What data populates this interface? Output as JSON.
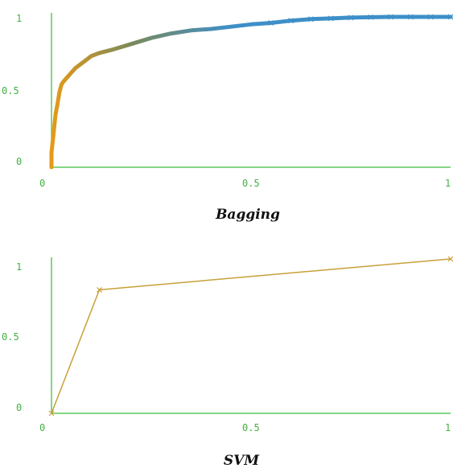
{
  "chart_data": [
    {
      "type": "line",
      "title": "Bagging",
      "xlabel": "",
      "ylabel": "",
      "xlim": [
        0,
        1
      ],
      "ylim": [
        0,
        1
      ],
      "x_ticks": [
        "0",
        "0.5",
        "1"
      ],
      "y_ticks": [
        "0",
        "0.5",
        "1"
      ],
      "grid": false,
      "colors": {
        "axis": "#5cc85c",
        "tick_text": "#44b044",
        "gradient_start": "#e69a18",
        "gradient_mid": "#7a8a5c",
        "gradient_end": "#3e8fc8",
        "marker": "#3e8fc8"
      },
      "series": [
        {
          "x": [
            0.0,
            0.0,
            0.005,
            0.008,
            0.01,
            0.015,
            0.02,
            0.025,
            0.03,
            0.04,
            0.05,
            0.06,
            0.08,
            0.1,
            0.12,
            0.15,
            0.2,
            0.25,
            0.3,
            0.35,
            0.4,
            0.45,
            0.5,
            0.55,
            0.6,
            0.65,
            0.7,
            0.75,
            0.8,
            0.85,
            0.9,
            0.95,
            1.0
          ],
          "y": [
            0.0,
            0.1,
            0.22,
            0.3,
            0.35,
            0.42,
            0.5,
            0.55,
            0.57,
            0.6,
            0.63,
            0.66,
            0.7,
            0.74,
            0.76,
            0.78,
            0.82,
            0.86,
            0.89,
            0.91,
            0.92,
            0.935,
            0.95,
            0.96,
            0.975,
            0.985,
            0.99,
            0.995,
            0.998,
            1.0,
            1.0,
            1.0,
            1.0
          ]
        }
      ]
    },
    {
      "type": "line",
      "title": "SVM",
      "xlabel": "",
      "ylabel": "",
      "xlim": [
        0,
        1
      ],
      "ylim": [
        0,
        1
      ],
      "x_ticks": [
        "0",
        "0.5",
        "1"
      ],
      "y_ticks": [
        "0",
        "0.5",
        "1"
      ],
      "grid": false,
      "colors": {
        "axis": "#5cc85c",
        "tick_text": "#44b044",
        "line": "#c8a038",
        "marker": "#c8a038"
      },
      "series": [
        {
          "x": [
            0.0,
            0.12,
            1.0
          ],
          "y": [
            0.0,
            0.8,
            1.0
          ]
        }
      ]
    }
  ]
}
